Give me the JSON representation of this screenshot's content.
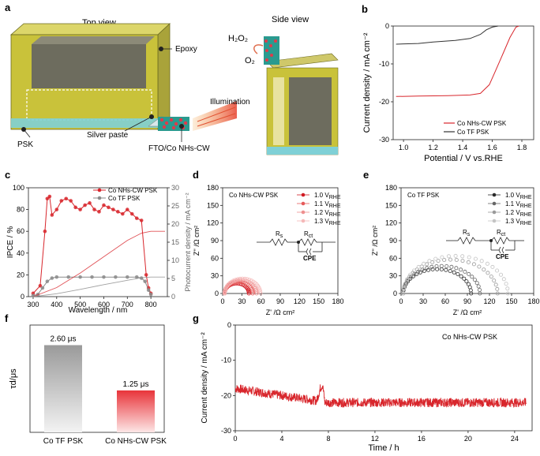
{
  "panels": {
    "a": {
      "label": "a",
      "top_view": "Top view",
      "side_view": "Side view",
      "epoxy": "Epoxy",
      "psk": "PSK",
      "silver_paste": "Silver paste",
      "fto": "FTO/Co NHs-CW",
      "illumination": "Illumination",
      "h2o2": "H₂O₂",
      "o2": "O₂"
    },
    "b": {
      "label": "b"
    },
    "c": {
      "label": "c"
    },
    "d": {
      "label": "d",
      "circuit": {
        "rs": "R",
        "rs_sub": "s",
        "rct": "R",
        "rct_sub": "ct",
        "cpe": "CPE"
      }
    },
    "e": {
      "label": "e",
      "circuit": {
        "rs": "R",
        "rs_sub": "s",
        "rct": "R",
        "rct_sub": "ct",
        "cpe": "CPE"
      }
    },
    "f": {
      "label": "f"
    },
    "g": {
      "label": "g"
    }
  },
  "colors": {
    "red": "#d8262c",
    "pink": "#f2a0a0",
    "gray": "#8a8a8a",
    "dark": "#333333",
    "yellow": "#c9c23a"
  },
  "chart_data": [
    {
      "id": "b",
      "type": "line",
      "xlabel": "Potential / V vs.RHE",
      "ylabel": "Current density / mA cm⁻²",
      "xlim": [
        0.93,
        1.88
      ],
      "ylim": [
        -30,
        0
      ],
      "xticks": [
        "1.0",
        "1.2",
        "1.4",
        "1.6",
        "1.8"
      ],
      "yticks": [
        "0",
        "-10",
        "-20",
        "-30"
      ],
      "legend": [
        "Co NHs-CW PSK",
        "Co TF PSK"
      ],
      "series": [
        {
          "name": "Co NHs-CW PSK",
          "x": [
            0.95,
            1.1,
            1.3,
            1.45,
            1.52,
            1.58,
            1.62,
            1.67,
            1.72,
            1.76,
            1.78
          ],
          "y": [
            -18.6,
            -18.5,
            -18.4,
            -18.2,
            -17.8,
            -15.5,
            -12,
            -7.5,
            -3,
            -0.3,
            0
          ]
        },
        {
          "name": "Co TF PSK",
          "x": [
            0.95,
            1.1,
            1.2,
            1.35,
            1.45,
            1.52,
            1.56,
            1.6,
            1.64
          ],
          "y": [
            -4.8,
            -4.6,
            -4.2,
            -3.8,
            -3.3,
            -2.2,
            -1,
            -0.3,
            0
          ]
        }
      ]
    },
    {
      "id": "c",
      "type": "line",
      "xlabel": "Wavelength / nm",
      "ylabel": "IPCE / %",
      "y2label": "Photocurrent density / mA cm⁻²",
      "xlim": [
        280,
        870
      ],
      "ylim": [
        0,
        100
      ],
      "y2lim": [
        0,
        30
      ],
      "xticks": [
        "300",
        "400",
        "500",
        "600",
        "700",
        "800"
      ],
      "yticks": [
        "0",
        "20",
        "40",
        "60",
        "80",
        "100"
      ],
      "y2ticks": [
        "0",
        "5",
        "10",
        "15",
        "20",
        "25",
        "30"
      ],
      "legend": [
        "Co NHs-CW PSK",
        "Co TF PSK"
      ],
      "series": [
        {
          "name": "Co NHs-CW PSK",
          "x": [
            300,
            330,
            350,
            360,
            370,
            380,
            400,
            420,
            440,
            460,
            480,
            500,
            520,
            540,
            560,
            580,
            600,
            620,
            640,
            660,
            680,
            700,
            720,
            740,
            760,
            780,
            790,
            800
          ],
          "y": [
            3,
            10,
            60,
            90,
            92,
            75,
            80,
            88,
            90,
            88,
            82,
            80,
            84,
            86,
            80,
            78,
            84,
            82,
            80,
            78,
            76,
            80,
            76,
            72,
            70,
            20,
            8,
            3
          ]
        },
        {
          "name": "Co TF PSK",
          "x": [
            300,
            320,
            340,
            360,
            380,
            400,
            450,
            500,
            550,
            600,
            650,
            700,
            740,
            760,
            775,
            790,
            800
          ],
          "y": [
            1,
            2,
            8,
            14,
            17,
            18,
            18,
            18,
            18,
            18,
            18,
            18,
            18,
            17,
            14,
            6,
            2
          ]
        }
      ],
      "integrated": [
        {
          "name": "Co NHs-CW PSK",
          "x": [
            300,
            400,
            500,
            600,
            700,
            760,
            800,
            860
          ],
          "y": [
            0,
            2.5,
            6.5,
            11,
            15.5,
            17.5,
            18,
            18
          ]
        },
        {
          "name": "Co TF PSK",
          "x": [
            300,
            400,
            500,
            600,
            700,
            760,
            800,
            860
          ],
          "y": [
            0,
            0.8,
            2,
            3.3,
            4.5,
            5.2,
            5.4,
            5.4
          ]
        }
      ]
    },
    {
      "id": "d",
      "type": "scatter",
      "title": "Co NHs-CW PSK",
      "xlabel": "Z' /Ω cm²",
      "ylabel": "Z'' /Ω cm²",
      "xlim": [
        0,
        180
      ],
      "ylim": [
        0,
        180
      ],
      "xticks": [
        "0",
        "30",
        "60",
        "90",
        "120",
        "150",
        "180"
      ],
      "yticks": [
        "0",
        "30",
        "60",
        "90",
        "120",
        "150",
        "180"
      ],
      "legend": [
        {
          "v": "1.0",
          "sub": "RHE",
          "unit": "V"
        },
        {
          "v": "1.1",
          "sub": "RHE",
          "unit": "V"
        },
        {
          "v": "1.2",
          "sub": "RHE",
          "unit": "V"
        },
        {
          "v": "1.3",
          "sub": "RHE",
          "unit": "V"
        }
      ],
      "arcs": [
        {
          "rs": 3,
          "d": 38
        },
        {
          "rs": 3,
          "d": 44
        },
        {
          "rs": 3,
          "d": 50
        },
        {
          "rs": 3,
          "d": 56
        }
      ]
    },
    {
      "id": "e",
      "type": "scatter",
      "title": "Co TF PSK",
      "xlabel": "Z' /Ω cm²",
      "ylabel": "Z'' /Ω cm²",
      "xlim": [
        0,
        180
      ],
      "ylim": [
        0,
        180
      ],
      "xticks": [
        "0",
        "30",
        "60",
        "90",
        "120",
        "150",
        "180"
      ],
      "yticks": [
        "0",
        "30",
        "60",
        "90",
        "120",
        "150",
        "180"
      ],
      "legend": [
        {
          "v": "1.0",
          "sub": "RHE",
          "unit": "V"
        },
        {
          "v": "1.1",
          "sub": "RHE",
          "unit": "V"
        },
        {
          "v": "1.2",
          "sub": "RHE",
          "unit": "V"
        },
        {
          "v": "1.3",
          "sub": "RHE",
          "unit": "V"
        }
      ],
      "arcs": [
        {
          "rs": 3,
          "d": 92
        },
        {
          "rs": 3,
          "d": 104
        },
        {
          "rs": 3,
          "d": 128
        },
        {
          "rs": 3,
          "d": 142
        }
      ]
    },
    {
      "id": "f",
      "type": "bar",
      "ylabel": "τd/μs",
      "categories": [
        "Co TF PSK",
        "Co NHs-CW PSK"
      ],
      "values": [
        2.6,
        1.25
      ],
      "labels": [
        "2.60 μs",
        "1.25 μs"
      ],
      "ylim": [
        0,
        3.2
      ]
    },
    {
      "id": "g",
      "type": "line",
      "title": "Co NHs-CW PSK",
      "xlabel": "Time / h",
      "ylabel": "Current density / mA cm⁻²",
      "xlim": [
        0,
        25.5
      ],
      "ylim": [
        -30,
        0
      ],
      "xticks": [
        "0",
        "4",
        "8",
        "12",
        "16",
        "20",
        "24"
      ],
      "yticks": [
        "0",
        "-10",
        "-20",
        "-30"
      ],
      "series": [
        {
          "name": "Co NHs-CW PSK",
          "x": [
            0,
            2,
            4,
            6,
            7,
            7.3,
            7.5,
            7.7,
            8,
            10,
            12,
            16,
            20,
            25
          ],
          "y": [
            -18,
            -19,
            -20,
            -21,
            -21.5,
            -18,
            -17,
            -22,
            -22,
            -22,
            -22,
            -22,
            -22,
            -22
          ]
        }
      ]
    }
  ]
}
